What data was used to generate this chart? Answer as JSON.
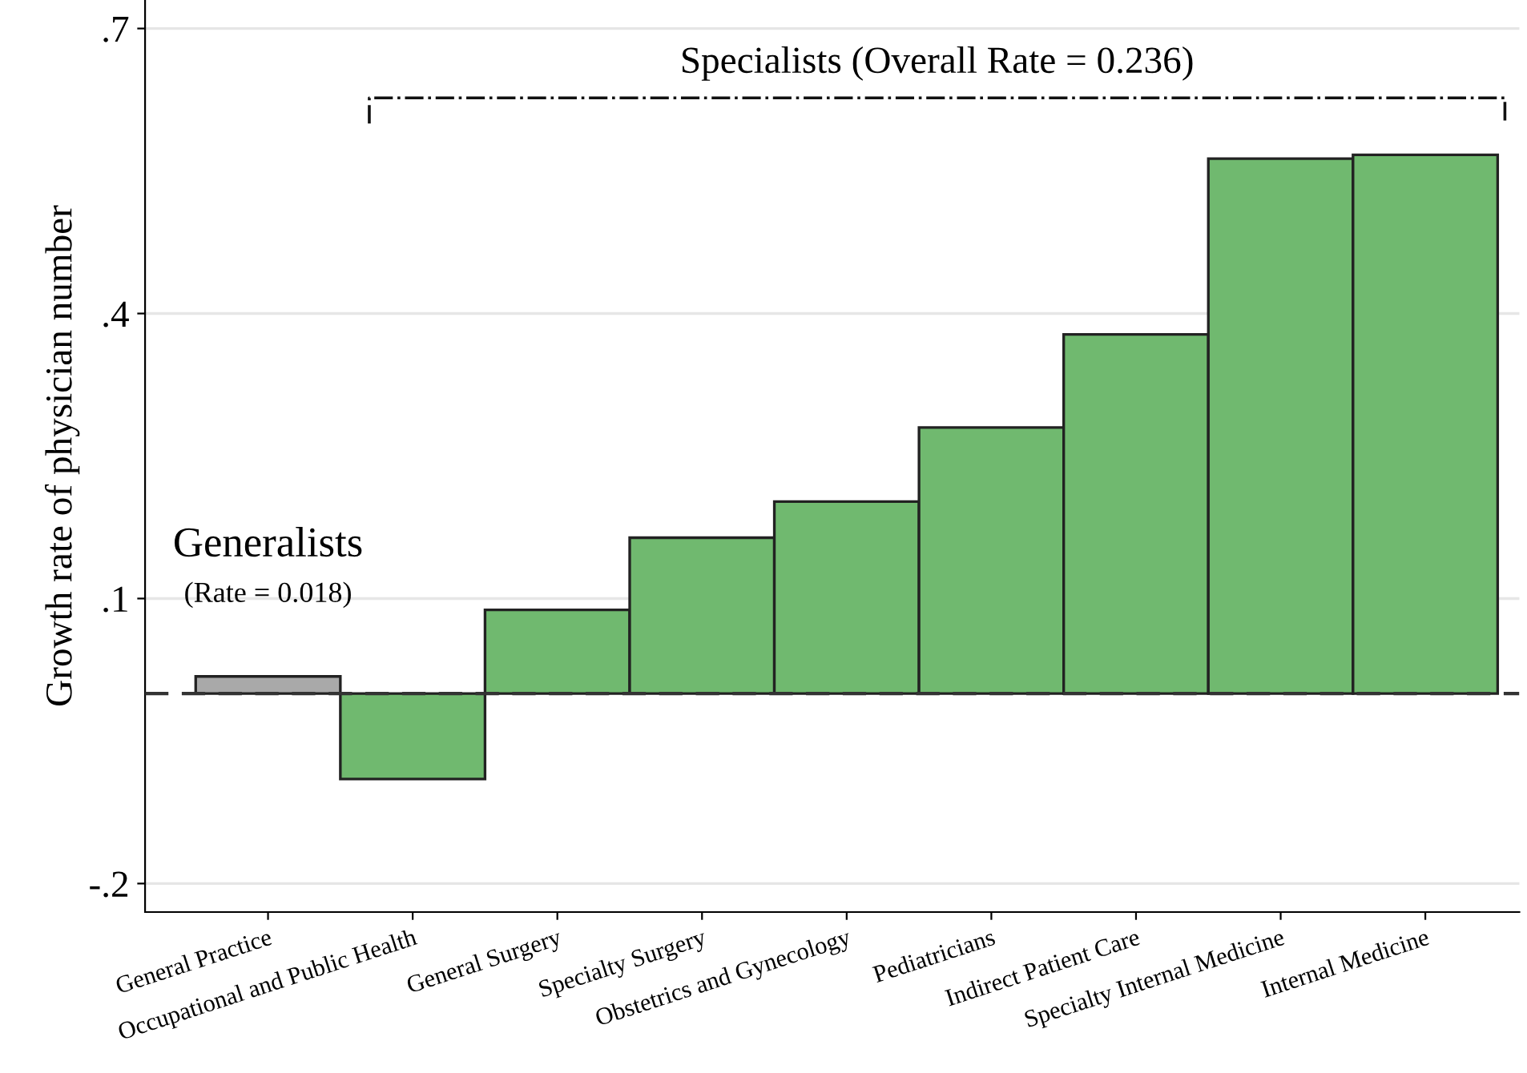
{
  "chart_data": {
    "type": "bar",
    "ylabel": "Growth rate of physician number",
    "categories": [
      "General Practice",
      "Occupational and Public Health",
      "General Surgery",
      "Specialty Surgery",
      "Obstetrics and Gynecology",
      "Pediatricians",
      "Indirect Patient Care",
      "Specialty Internal Medicine",
      "Internal Medicine"
    ],
    "values": [
      0.018,
      -0.09,
      0.088,
      0.164,
      0.202,
      0.28,
      0.378,
      0.563,
      0.567
    ],
    "colors": [
      "#a9a9a9",
      "#70b96f",
      "#70b96f",
      "#70b96f",
      "#70b96f",
      "#70b96f",
      "#70b96f",
      "#70b96f",
      "#70b96f"
    ],
    "ylim": [
      -0.23,
      0.73
    ],
    "yticks": [
      {
        "value": 0.7,
        "label": ".7"
      },
      {
        "value": 0.4,
        "label": ".4"
      },
      {
        "value": 0.1,
        "label": ".1"
      },
      {
        "value": -0.2,
        "label": "-.2"
      }
    ],
    "grid": "y",
    "ref_lines": [
      {
        "axis": "y",
        "value": 0,
        "color": "#333333",
        "line_style": "dashed"
      }
    ],
    "annotations": [
      "Generalists",
      "(Rate = 0.018)",
      "Specialists (Overall Rate = 0.236)"
    ]
  }
}
